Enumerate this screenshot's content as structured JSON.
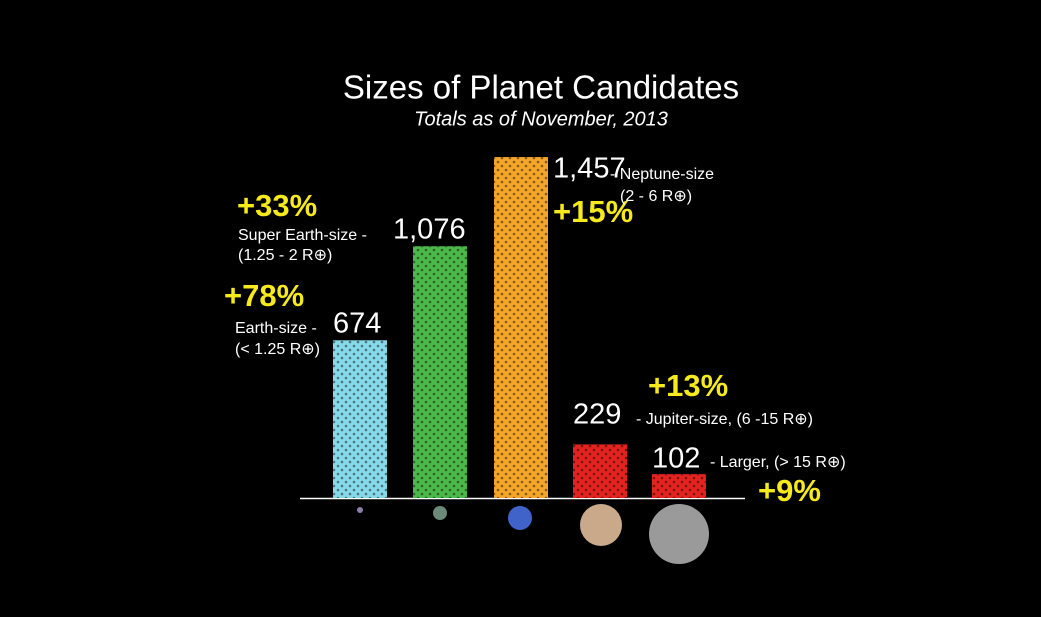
{
  "chart_data": {
    "type": "bar",
    "title": "Sizes of Planet Candidates",
    "subtitle": "Totals as of November, 2013",
    "categories": [
      "Earth-size -",
      "Super Earth-size -",
      "- Neptune-size",
      "- Jupiter-size, (6 -15 R⊕)",
      "- Larger, (> 15 R⊕)"
    ],
    "size_ranges": [
      "(< 1.25 R⊕)",
      "(1.25 - 2 R⊕)",
      "(2 - 6 R⊕)",
      null,
      null
    ],
    "values": [
      674,
      1076,
      1457,
      229,
      102
    ],
    "value_labels": [
      "674",
      "1,076",
      "1,457",
      "229",
      "102"
    ],
    "growth_labels": [
      "+78%",
      "+33%",
      "+15%",
      "+13%",
      "+9%"
    ],
    "colors": [
      "#86d9e8",
      "#4cb849",
      "#f4a62a",
      "#e2231f",
      "#e2231f"
    ],
    "ylim": [
      0,
      1500
    ]
  }
}
